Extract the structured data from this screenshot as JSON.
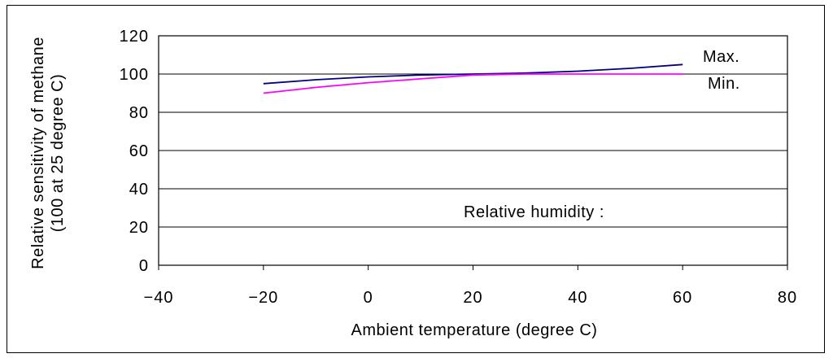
{
  "chart_data": {
    "type": "line",
    "title": "",
    "xlabel": "Ambient temperature (degree C)",
    "ylabel_line1": "Relative sensitivity of methane",
    "ylabel_line2": "(100 at 25 degree C)",
    "xlim": [
      -40,
      80
    ],
    "ylim": [
      0,
      120
    ],
    "x_ticks": [
      -40,
      -20,
      0,
      20,
      40,
      60,
      80
    ],
    "x_tick_labels": [
      "−40",
      "−20",
      "0",
      "20",
      "40",
      "60",
      "80"
    ],
    "y_ticks": [
      0,
      20,
      40,
      60,
      80,
      100,
      120
    ],
    "y_tick_labels": [
      "0",
      "20",
      "40",
      "60",
      "80",
      "100",
      "120"
    ],
    "grid": "horizontal",
    "series": [
      {
        "name": "Max.",
        "color": "#000080",
        "x": [
          -20,
          -10,
          0,
          10,
          20,
          30,
          40,
          50,
          60
        ],
        "values": [
          95,
          97,
          98.5,
          99.5,
          100,
          100.5,
          101.5,
          103,
          105
        ]
      },
      {
        "name": "Min.",
        "color": "#ff00ff",
        "x": [
          -20,
          -10,
          0,
          10,
          20,
          30,
          40,
          50,
          60
        ],
        "values": [
          90,
          93,
          95.5,
          97.5,
          99.5,
          100,
          100,
          100,
          100
        ]
      }
    ],
    "annotation": "Relative humidity :"
  }
}
